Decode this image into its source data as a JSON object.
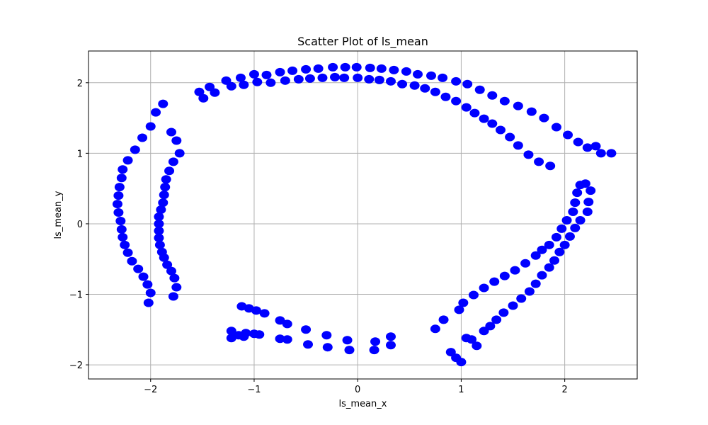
{
  "chart_data": {
    "type": "scatter",
    "title": "Scatter Plot of ls_mean",
    "xlabel": "ls_mean_x",
    "ylabel": "ls_mean_y",
    "xlim": [
      -2.6,
      2.7
    ],
    "ylim": [
      -2.2,
      2.45
    ],
    "xticks": [
      -2,
      -1,
      0,
      1,
      2
    ],
    "yticks": [
      -2,
      -1,
      0,
      1,
      2
    ],
    "xtick_labels": [
      "−2",
      "−1",
      "0",
      "1",
      "2"
    ],
    "ytick_labels": [
      "−2",
      "−1",
      "0",
      "1",
      "2"
    ],
    "grid": true,
    "marker_color": "#0000ff",
    "series": [
      {
        "points": [
          [
            -2.32,
            0.28
          ],
          [
            -2.31,
            0.4
          ],
          [
            -2.3,
            0.52
          ],
          [
            -2.28,
            0.65
          ],
          [
            -2.27,
            0.77
          ],
          [
            -2.22,
            0.9
          ],
          [
            -2.15,
            1.05
          ],
          [
            -2.08,
            1.22
          ],
          [
            -2.0,
            1.38
          ],
          [
            -1.95,
            1.58
          ],
          [
            -1.88,
            1.7
          ],
          [
            -2.31,
            0.16
          ],
          [
            -2.29,
            0.04
          ],
          [
            -2.28,
            -0.08
          ],
          [
            -2.27,
            -0.19
          ],
          [
            -2.25,
            -0.3
          ],
          [
            -2.22,
            -0.41
          ],
          [
            -2.18,
            -0.53
          ],
          [
            -2.12,
            -0.64
          ],
          [
            -2.07,
            -0.75
          ],
          [
            -2.03,
            -0.86
          ],
          [
            -2.0,
            -0.98
          ],
          [
            -2.02,
            -1.12
          ],
          [
            -1.53,
            1.87
          ],
          [
            -1.49,
            1.78
          ],
          [
            -1.43,
            1.94
          ],
          [
            -1.38,
            1.86
          ],
          [
            -1.27,
            2.03
          ],
          [
            -1.22,
            1.95
          ],
          [
            -1.13,
            2.07
          ],
          [
            -1.1,
            1.97
          ],
          [
            -1.0,
            2.12
          ],
          [
            -0.97,
            2.01
          ],
          [
            -0.88,
            2.11
          ],
          [
            -0.84,
            2.0
          ],
          [
            -0.75,
            2.15
          ],
          [
            -0.7,
            2.03
          ],
          [
            -0.63,
            2.17
          ],
          [
            -0.57,
            2.05
          ],
          [
            -0.5,
            2.19
          ],
          [
            -0.46,
            2.06
          ],
          [
            -0.38,
            2.2
          ],
          [
            -0.34,
            2.07
          ],
          [
            -0.24,
            2.22
          ],
          [
            -0.22,
            2.08
          ],
          [
            -0.12,
            2.22
          ],
          [
            -0.13,
            2.07
          ],
          [
            -0.01,
            2.22
          ],
          [
            0.0,
            2.07
          ],
          [
            0.12,
            2.21
          ],
          [
            0.11,
            2.05
          ],
          [
            0.23,
            2.2
          ],
          [
            0.21,
            2.04
          ],
          [
            0.35,
            2.18
          ],
          [
            0.32,
            2.02
          ],
          [
            0.47,
            2.16
          ],
          [
            0.43,
            1.98
          ],
          [
            0.58,
            2.12
          ],
          [
            0.55,
            1.96
          ],
          [
            0.71,
            2.1
          ],
          [
            0.65,
            1.92
          ],
          [
            0.82,
            2.07
          ],
          [
            0.75,
            1.87
          ],
          [
            0.95,
            2.02
          ],
          [
            0.85,
            1.8
          ],
          [
            1.06,
            1.98
          ],
          [
            0.95,
            1.74
          ],
          [
            1.18,
            1.9
          ],
          [
            1.05,
            1.65
          ],
          [
            1.3,
            1.82
          ],
          [
            1.13,
            1.57
          ],
          [
            1.42,
            1.74
          ],
          [
            1.22,
            1.49
          ],
          [
            1.55,
            1.67
          ],
          [
            1.3,
            1.42
          ],
          [
            1.68,
            1.59
          ],
          [
            1.38,
            1.33
          ],
          [
            1.8,
            1.5
          ],
          [
            1.47,
            1.23
          ],
          [
            1.92,
            1.37
          ],
          [
            1.55,
            1.11
          ],
          [
            2.03,
            1.26
          ],
          [
            1.65,
            0.98
          ],
          [
            2.13,
            1.16
          ],
          [
            1.75,
            0.88
          ],
          [
            2.22,
            1.08
          ],
          [
            1.86,
            0.82
          ],
          [
            2.3,
            1.1
          ],
          [
            2.35,
            1.0
          ],
          [
            2.45,
            1.0
          ],
          [
            -1.8,
            1.3
          ],
          [
            -1.75,
            1.18
          ],
          [
            -1.72,
            1.0
          ],
          [
            -1.78,
            0.88
          ],
          [
            -1.82,
            0.75
          ],
          [
            -1.85,
            0.63
          ],
          [
            -1.86,
            0.52
          ],
          [
            -1.87,
            0.41
          ],
          [
            -1.88,
            0.3
          ],
          [
            -1.9,
            0.2
          ],
          [
            -1.92,
            0.1
          ],
          [
            -1.92,
            0.0
          ],
          [
            -1.92,
            -0.1
          ],
          [
            -1.92,
            -0.2
          ],
          [
            -1.91,
            -0.3
          ],
          [
            -1.89,
            -0.4
          ],
          [
            -1.87,
            -0.48
          ],
          [
            -1.84,
            -0.58
          ],
          [
            -1.8,
            -0.67
          ],
          [
            -1.77,
            -0.77
          ],
          [
            -1.75,
            -0.9
          ],
          [
            -1.78,
            -1.03
          ],
          [
            2.2,
            0.57
          ],
          [
            2.15,
            0.55
          ],
          [
            2.25,
            0.47
          ],
          [
            2.12,
            0.44
          ],
          [
            2.23,
            0.31
          ],
          [
            2.1,
            0.3
          ],
          [
            2.22,
            0.17
          ],
          [
            2.08,
            0.17
          ],
          [
            2.15,
            0.05
          ],
          [
            2.02,
            0.05
          ],
          [
            2.1,
            -0.06
          ],
          [
            1.97,
            -0.07
          ],
          [
            2.05,
            -0.18
          ],
          [
            1.92,
            -0.19
          ],
          [
            2.0,
            -0.3
          ],
          [
            1.85,
            -0.3
          ],
          [
            1.95,
            -0.4
          ],
          [
            1.78,
            -0.37
          ],
          [
            1.9,
            -0.52
          ],
          [
            1.72,
            -0.45
          ],
          [
            1.85,
            -0.62
          ],
          [
            1.62,
            -0.56
          ],
          [
            1.78,
            -0.73
          ],
          [
            1.52,
            -0.66
          ],
          [
            1.72,
            -0.85
          ],
          [
            1.42,
            -0.74
          ],
          [
            1.66,
            -0.96
          ],
          [
            1.32,
            -0.82
          ],
          [
            1.58,
            -1.06
          ],
          [
            1.22,
            -0.91
          ],
          [
            1.5,
            -1.16
          ],
          [
            1.12,
            -1.01
          ],
          [
            1.41,
            -1.26
          ],
          [
            1.02,
            -1.12
          ],
          [
            1.34,
            -1.36
          ],
          [
            0.98,
            -1.22
          ],
          [
            1.28,
            -1.45
          ],
          [
            0.83,
            -1.36
          ],
          [
            1.22,
            -1.52
          ],
          [
            0.75,
            -1.49
          ],
          [
            1.1,
            -1.64
          ],
          [
            1.15,
            -1.73
          ],
          [
            1.05,
            -1.62
          ],
          [
            0.9,
            -1.82
          ],
          [
            0.95,
            -1.9
          ],
          [
            1.0,
            -1.96
          ],
          [
            -1.12,
            -1.17
          ],
          [
            -1.05,
            -1.2
          ],
          [
            -0.98,
            -1.23
          ],
          [
            -0.9,
            -1.27
          ],
          [
            -0.75,
            -1.37
          ],
          [
            -0.68,
            -1.42
          ],
          [
            -0.5,
            -1.5
          ],
          [
            -0.3,
            -1.58
          ],
          [
            -0.1,
            -1.65
          ],
          [
            0.17,
            -1.67
          ],
          [
            0.32,
            -1.6
          ],
          [
            -1.22,
            -1.52
          ],
          [
            -1.15,
            -1.58
          ],
          [
            -1.08,
            -1.55
          ],
          [
            -1.0,
            -1.56
          ],
          [
            -0.95,
            -1.57
          ],
          [
            -0.75,
            -1.63
          ],
          [
            -0.68,
            -1.64
          ],
          [
            -0.48,
            -1.71
          ],
          [
            -0.29,
            -1.75
          ],
          [
            -0.08,
            -1.79
          ],
          [
            0.16,
            -1.79
          ],
          [
            0.32,
            -1.72
          ],
          [
            -1.22,
            -1.62
          ],
          [
            -1.1,
            -1.6
          ]
        ]
      }
    ]
  }
}
